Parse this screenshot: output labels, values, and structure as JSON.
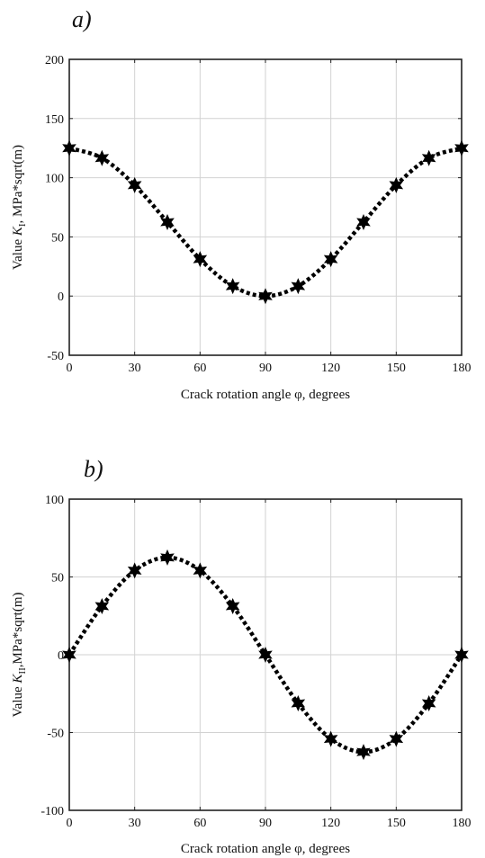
{
  "chart_data": [
    {
      "type": "line",
      "panel_label": "a)",
      "xlabel": "Crack rotation angle φ, degrees",
      "ylabel_pre": "Value ",
      "ylabel_var": "K",
      "ylabel_sub": "I",
      "ylabel_post": ", MPa*sqrt(m)",
      "xlim": [
        0,
        180
      ],
      "ylim": [
        -50,
        200
      ],
      "xticks": [
        0,
        30,
        60,
        90,
        120,
        150,
        180
      ],
      "yticks": [
        -50,
        0,
        50,
        100,
        150,
        200
      ],
      "grid": true,
      "series": [
        {
          "x": [
            0,
            15,
            30,
            45,
            60,
            75,
            90,
            105,
            120,
            135,
            150,
            165,
            180
          ],
          "y": [
            125,
            116.6,
            93.75,
            62.5,
            31.25,
            8.4,
            0,
            8.4,
            31.25,
            62.5,
            93.75,
            116.6,
            125
          ],
          "style": "dotted",
          "marker": "star"
        }
      ]
    },
    {
      "type": "line",
      "panel_label": "b)",
      "xlabel": "Crack rotation angle φ, degrees",
      "ylabel_pre": "Value ",
      "ylabel_var": "K",
      "ylabel_sub": "II",
      "ylabel_post": ",MPa*sqrt(m)",
      "xlim": [
        0,
        180
      ],
      "ylim": [
        -100,
        100
      ],
      "xticks": [
        0,
        30,
        60,
        90,
        120,
        150,
        180
      ],
      "yticks": [
        -100,
        -50,
        0,
        50,
        100
      ],
      "grid": true,
      "series": [
        {
          "x": [
            0,
            15,
            30,
            45,
            60,
            75,
            90,
            105,
            120,
            135,
            150,
            165,
            180
          ],
          "y": [
            0,
            31.25,
            54.1,
            62.5,
            54.1,
            31.25,
            0,
            -31.25,
            -54.1,
            -62.5,
            -54.1,
            -31.25,
            0
          ],
          "style": "dotted",
          "marker": "star"
        }
      ]
    }
  ]
}
